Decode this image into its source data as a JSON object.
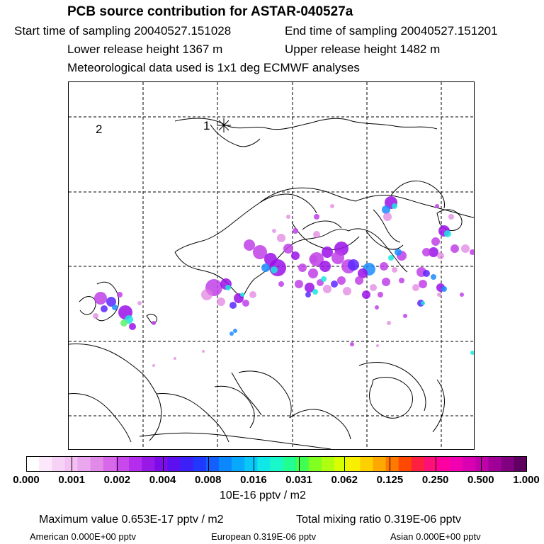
{
  "header": {
    "title": "PCB source contribution for ASTAR-040527a",
    "start": "Start time of sampling 20040527.151028",
    "end": "End time of sampling 20040527.151201",
    "lower": "Lower release height 1367 m",
    "upper": "Upper release height 1482 m",
    "met": "Meteorological data used is 1x1 deg ECMWF analyses"
  },
  "map": {
    "markers": [
      {
        "label": "1"
      },
      {
        "label": "2"
      }
    ],
    "plume_colors": [
      "#f2c8f2",
      "#e07ee0",
      "#c040e8",
      "#9a10e8",
      "#5a28ff",
      "#1a8cff",
      "#19e6e0",
      "#5ef06a",
      "#f0e020"
    ]
  },
  "colorbar": {
    "segment_colors": [
      "#ffffff",
      "#fbe8fb",
      "#f6d2f6",
      "#f2c0f2",
      "#eaa6ee",
      "#e28ae8",
      "#d868ea",
      "#c848ec",
      "#b42cec",
      "#9818e8",
      "#7c0ce8",
      "#5c10f0",
      "#3c20f8",
      "#2038ff",
      "#1460ff",
      "#0c88ff",
      "#08a8ff",
      "#08c8f8",
      "#10e8e8",
      "#18f8c8",
      "#20ff90",
      "#40ff50",
      "#80ff20",
      "#b0ff10",
      "#d8ff00",
      "#f8f000",
      "#ffd000",
      "#ffa800",
      "#ff7800",
      "#ff4800",
      "#ff2040",
      "#ff1078",
      "#ff00a0",
      "#f000b0",
      "#d800b0",
      "#c000a8",
      "#a00098",
      "#800080",
      "#600060"
    ],
    "tick_labels": [
      "0.000",
      "0.001",
      "0.002",
      "0.004",
      "0.008",
      "0.016",
      "0.031",
      "0.062",
      "0.125",
      "0.250",
      "0.500",
      "1.000"
    ],
    "units": "10E-16 pptv / m2"
  },
  "footer": {
    "max_value": "Maximum value  0.653E-17 pptv / m2",
    "total": "Total mixing ratio  0.319E-06 pptv",
    "american": "American  0.000E+00 pptv",
    "european": "European  0.319E-06 pptv",
    "asian": "Asian  0.000E+00 pptv"
  }
}
